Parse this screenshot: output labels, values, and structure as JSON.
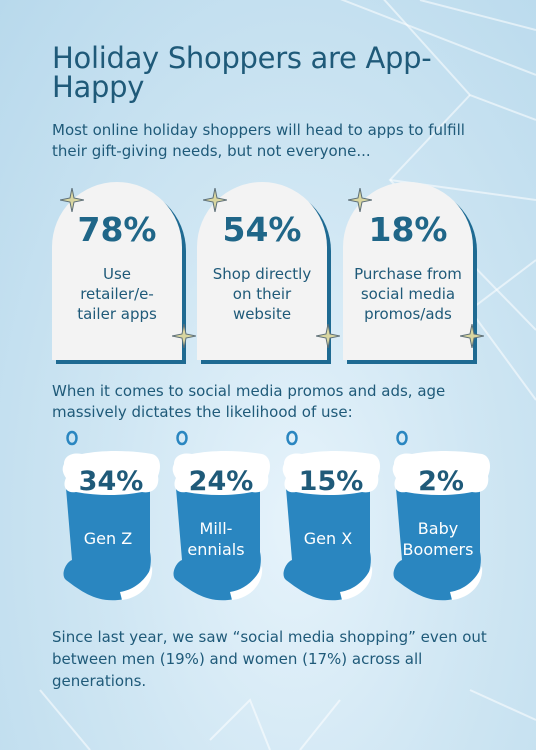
{
  "header": {
    "title": "Holiday Shoppers are App-Happy",
    "intro": "Most online holiday shoppers will head to apps to fulfill their gift-giving needs, but not everyone..."
  },
  "app_stats": [
    {
      "percent": "78%",
      "label": "Use retailer/e-tailer apps"
    },
    {
      "percent": "54%",
      "label": "Shop directly on their website"
    },
    {
      "percent": "18%",
      "label": "Purchase from social media promos/ads"
    }
  ],
  "social": {
    "heading": "When it comes to social media promos and ads, age massively dictates the likelihood of use:",
    "stockings": [
      {
        "percent": "34%",
        "label": "Gen Z"
      },
      {
        "percent": "24%",
        "label": "Mill-ennials"
      },
      {
        "percent": "15%",
        "label": "Gen X"
      },
      {
        "percent": "2%",
        "label": "Baby Boomers"
      }
    ]
  },
  "closing": "Since last year, we saw “social media shopping” even out between men (19%) and women (17%) across all generations.",
  "colors": {
    "background": "#cfe6f3",
    "text": "#1f5a79",
    "accent_blue": "#2a86c0",
    "arch_shadow": "#1e6a92",
    "card": "#f3f3f3",
    "sparkle": "#d9d6a0"
  },
  "icons": {
    "sparkle": "sparkle-icon",
    "stocking": "christmas-stocking-icon"
  }
}
